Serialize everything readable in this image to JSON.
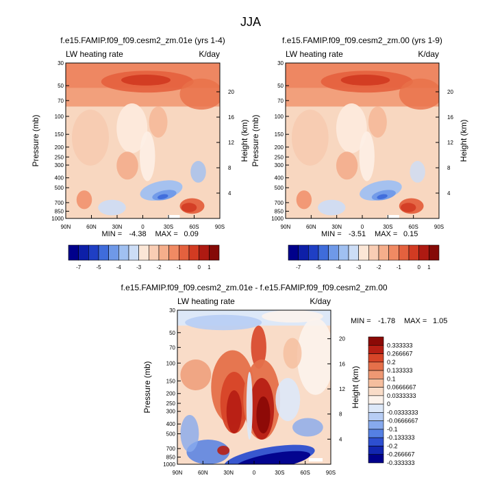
{
  "figure_title": "JJA",
  "colors": {
    "field_palette": [
      "#00008B",
      "#0D1FA8",
      "#1F3FC4",
      "#3F6CDB",
      "#6F99E8",
      "#A0C0F1",
      "#CCDDF6",
      "#FBE6D6",
      "#F9CDB4",
      "#F5AE8B",
      "#F08A63",
      "#E4613E",
      "#D23B22",
      "#AE1A12",
      "#850A07"
    ],
    "diff_palette": [
      "#00008B",
      "#1226B0",
      "#2D4FD0",
      "#5580E3",
      "#87AAEE",
      "#B7CDF4",
      "#DDE8F8",
      "#FCF3EC",
      "#F9DCC8",
      "#F5BE9E",
      "#EE9873",
      "#E5704A",
      "#D74528",
      "#B71F14",
      "#8B0A06"
    ]
  },
  "chart_data": [
    {
      "type": "heatmap",
      "panel": "top-left",
      "title": "f.e15.FAMIP.f09_f09.cesm2_zm.01e (yrs 1-4)",
      "left_label": "LW heating rate",
      "right_label": "K/day",
      "ylabel": "Pressure (mb)",
      "y2label": "Height (km)",
      "x_ticks": [
        "90N",
        "60N",
        "30N",
        "0",
        "30S",
        "60S",
        "90S"
      ],
      "y_ticks": [
        "30",
        "50",
        "70",
        "100",
        "150",
        "200",
        "250",
        "300",
        "400",
        "500",
        "700",
        "850",
        "1000"
      ],
      "y2_ticks": [
        "20",
        "16",
        "12",
        "8",
        "4"
      ],
      "min_label": "MIN =",
      "min_value": "-4.38",
      "max_label": "MAX =",
      "max_value": "0.09",
      "colorbar_labels": [
        "-7",
        "-5",
        "-4",
        "-3",
        "-2",
        "-1",
        "0",
        "1"
      ]
    },
    {
      "type": "heatmap",
      "panel": "top-right",
      "title": "f.e15.FAMIP.f09_f09.cesm2_zm.00 (yrs 1-9)",
      "left_label": "LW heating rate",
      "right_label": "K/day",
      "ylabel": "Pressure (mb)",
      "y2label": "Height (km)",
      "x_ticks": [
        "90N",
        "60N",
        "30N",
        "0",
        "30S",
        "60S",
        "90S"
      ],
      "y_ticks": [
        "30",
        "50",
        "70",
        "100",
        "150",
        "200",
        "250",
        "300",
        "400",
        "500",
        "700",
        "850",
        "1000"
      ],
      "y2_ticks": [
        "20",
        "16",
        "12",
        "8",
        "4"
      ],
      "min_label": "MIN =",
      "min_value": "-3.51",
      "max_label": "MAX =",
      "max_value": "0.15",
      "colorbar_labels": [
        "-7",
        "-5",
        "-4",
        "-3",
        "-2",
        "-1",
        "0",
        "1"
      ]
    },
    {
      "type": "heatmap",
      "panel": "bottom-difference",
      "title": "f.e15.FAMIP.f09_f09.cesm2_zm.01e - f.e15.FAMIP.f09_f09.cesm2_zm.00",
      "left_label": "LW heating rate",
      "right_label": "K/day",
      "ylabel": "Pressure (mb)",
      "y2label": "Height (km)",
      "x_ticks": [
        "90N",
        "60N",
        "30N",
        "0",
        "30S",
        "60S",
        "90S"
      ],
      "y_ticks": [
        "30",
        "50",
        "70",
        "100",
        "150",
        "200",
        "250",
        "300",
        "400",
        "500",
        "700",
        "850",
        "1000"
      ],
      "y2_ticks": [
        "20",
        "16",
        "12",
        "8",
        "4"
      ],
      "min_label": "MIN =",
      "min_value": "-1.78",
      "max_label": "MAX =",
      "max_value": "1.05",
      "colorbar_labels": [
        "0.333333",
        "0.266667",
        "0.2",
        "0.133333",
        "0.1",
        "0.0666667",
        "0.0333333",
        "0",
        "-0.0333333",
        "-0.0666667",
        "-0.1",
        "-0.133333",
        "-0.2",
        "-0.266667",
        "-0.333333"
      ]
    }
  ]
}
